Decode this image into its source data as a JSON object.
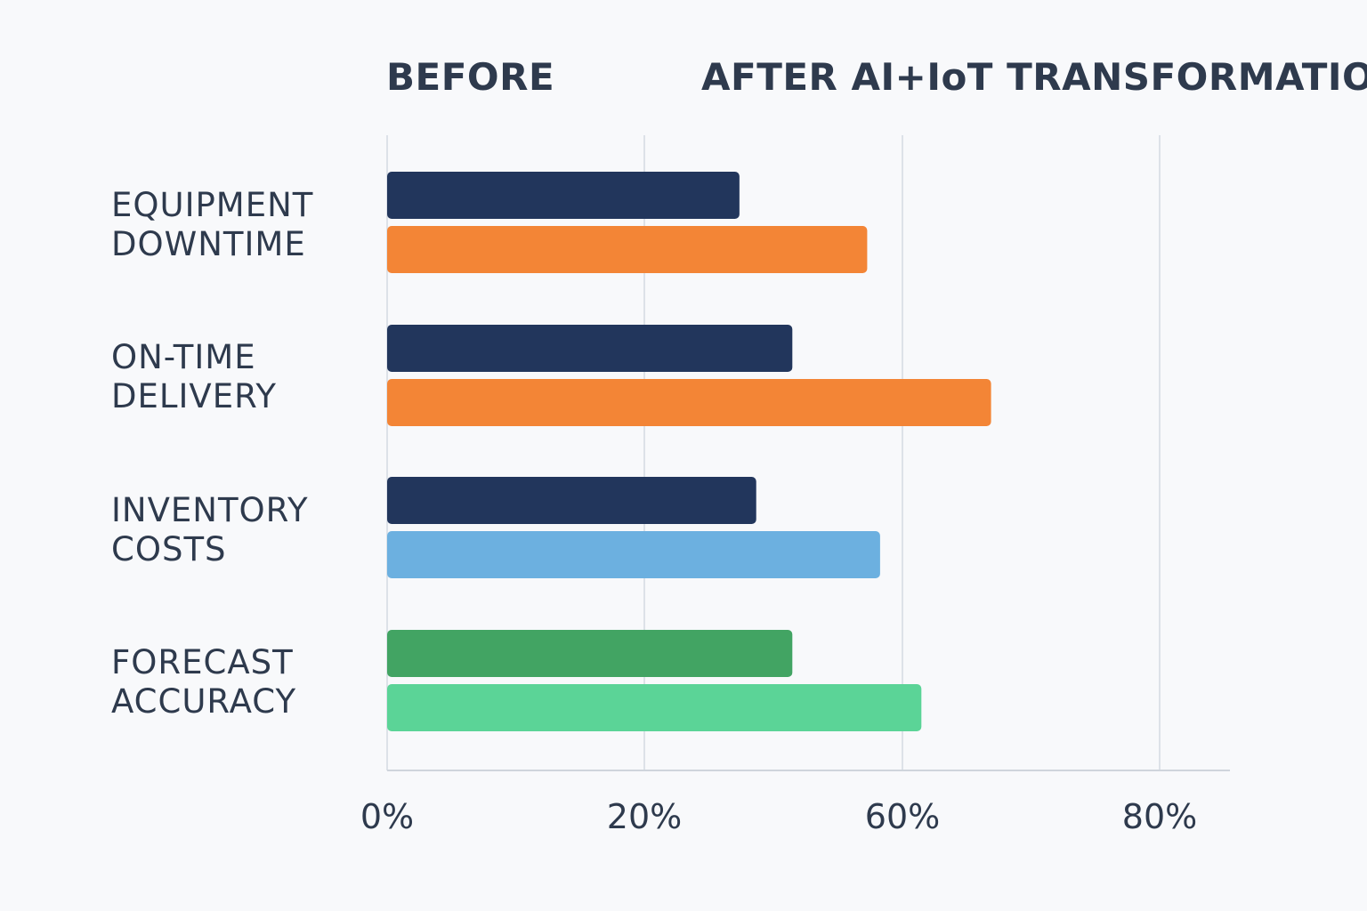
{
  "headers": {
    "before": "BEFORE",
    "after": "AFTER AI+IoT TRANSFORMATION"
  },
  "chart_data": {
    "type": "bar",
    "orientation": "horizontal",
    "categories": [
      [
        "EQUIPMENT",
        "DOWNTIME"
      ],
      [
        "ON-TIME",
        "DELIVERY"
      ],
      [
        "INVENTORY",
        "COSTS"
      ],
      [
        "FORECAST",
        "ACCURACY"
      ]
    ],
    "series": [
      {
        "values": [
          27.3,
          31.4,
          28.6,
          31.4
        ],
        "colors": [
          "#22365c",
          "#22365c",
          "#22365c",
          "#42a463"
        ]
      },
      {
        "values": [
          37.2,
          46.8,
          38.2,
          41.4
        ],
        "colors": [
          "#f38536",
          "#f38536",
          "#6cb0e0",
          "#5bd497"
        ]
      }
    ],
    "x_ticks": [
      {
        "label": "0%"
      },
      {
        "label": "20%"
      },
      {
        "label": "60%"
      },
      {
        "label": "80%"
      }
    ],
    "grid": true,
    "colors": {
      "grid": "#dde2e8",
      "axis": "#cfd5dc",
      "tick_label": "#2e3a4d"
    }
  }
}
